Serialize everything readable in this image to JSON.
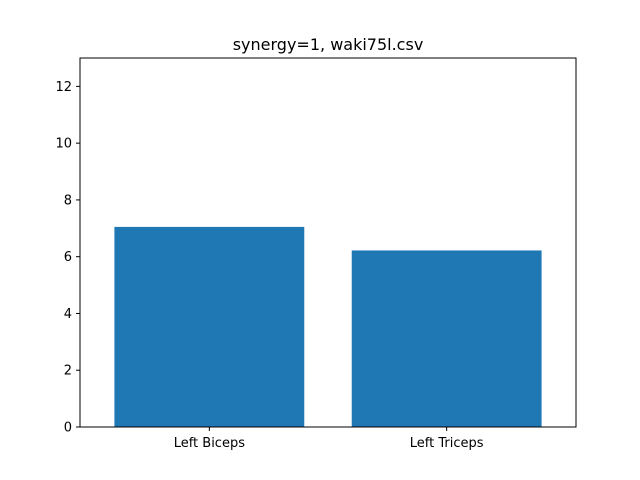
{
  "chart_data": {
    "type": "bar",
    "title": "synergy=1, waki75l.csv",
    "categories": [
      "Left Biceps",
      "Left Triceps"
    ],
    "values": [
      7.05,
      6.22
    ],
    "xlabel": "",
    "ylabel": "",
    "ylim": [
      0,
      13
    ],
    "yticks": [
      0,
      2,
      4,
      6,
      8,
      10,
      12
    ],
    "grid": false,
    "legend": "none",
    "bar_color": "#1f77b4"
  }
}
